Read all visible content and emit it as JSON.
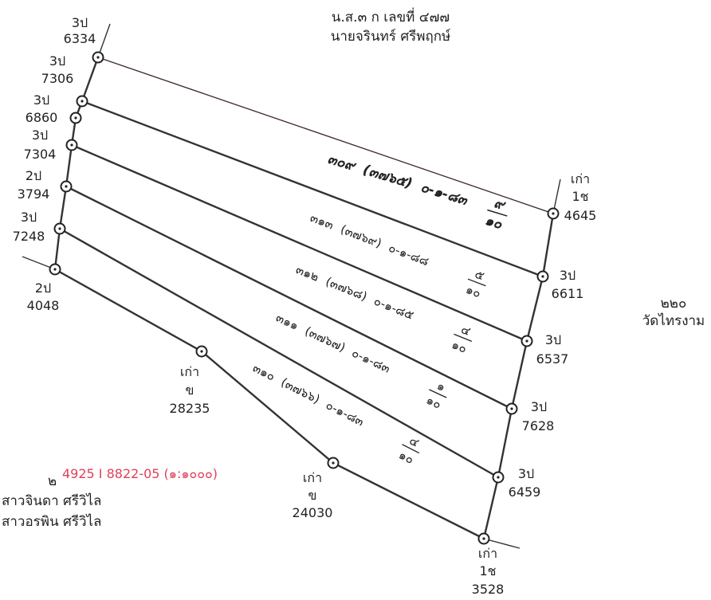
{
  "header": {
    "deed": "น.ส.๓ ก เลขที่ ๔๗๗",
    "owner": "นายจรินทร์ ศรีพฤกษ์"
  },
  "neighbor_east": {
    "code": "๒๒๐",
    "name": "วัดไทรงาม"
  },
  "sheet_ref": {
    "prefix": "๒",
    "text": "4925 I 8822-05 (๑:๑๐๐๐)",
    "owner_1": "สาวจินดา ศรีวิไล",
    "owner_2": "สาวอรพิน ศรีวิไล"
  },
  "markers": [
    {
      "id": "m-6334",
      "line1": "3ป",
      "line2": "6334"
    },
    {
      "id": "m-7306",
      "line1": "3ป",
      "line2": "7306"
    },
    {
      "id": "m-6860",
      "line1": "3ป",
      "line2": "6860"
    },
    {
      "id": "m-7304",
      "line1": "3ป",
      "line2": "7304"
    },
    {
      "id": "m-3794",
      "line1": "2ป",
      "line2": "3794"
    },
    {
      "id": "m-7248",
      "line1": "3ป",
      "line2": "7248"
    },
    {
      "id": "m-4048",
      "line1": "2ป",
      "line2": "4048"
    },
    {
      "id": "m-28235",
      "line1": "เก่า",
      "line2": "ข",
      "line3": "28235"
    },
    {
      "id": "m-24030",
      "line1": "เก่า",
      "line2": "ข",
      "line3": "24030"
    },
    {
      "id": "m-3528",
      "line1": "เก่า",
      "line2": "1ช",
      "line3": "3528"
    },
    {
      "id": "m-6459",
      "line1": "3ป",
      "line2": "6459"
    },
    {
      "id": "m-7628",
      "line1": "3ป",
      "line2": "7628"
    },
    {
      "id": "m-6537",
      "line1": "3ป",
      "line2": "6537"
    },
    {
      "id": "m-6611",
      "line1": "3ป",
      "line2": "6611"
    },
    {
      "id": "m-4645",
      "line1": "เก่า",
      "line2": "1ช",
      "line3": "4645"
    }
  ],
  "plots": [
    {
      "number": "๓๐๙",
      "ref": "(๓๗๖๕)",
      "area": "๐-๑-๘๓",
      "frac_num": "๙",
      "frac_den": "๑๐"
    },
    {
      "number": "๓๑๓",
      "ref": "(๓๗๖๙)",
      "area": "๐-๑-๘๘",
      "frac_num": "๕",
      "frac_den": "๑๐"
    },
    {
      "number": "๓๑๒",
      "ref": "(๓๗๖๘)",
      "area": "๐-๑-๘๕",
      "frac_num": "๔",
      "frac_den": "๑๐"
    },
    {
      "number": "๓๑๑",
      "ref": "(๓๗๖๗)",
      "area": "๐-๑-๘๓",
      "frac_num": "๑",
      "frac_den": "๑๐"
    },
    {
      "number": "๓๑๐",
      "ref": "(๓๗๖๖)",
      "area": "๐-๑-๘๓",
      "frac_num": "๔",
      "frac_den": "๑๐"
    }
  ],
  "colors": {
    "boundary_red": "#e24a5e",
    "line_dark": "#333333",
    "sheet_text": "#e0405a"
  }
}
